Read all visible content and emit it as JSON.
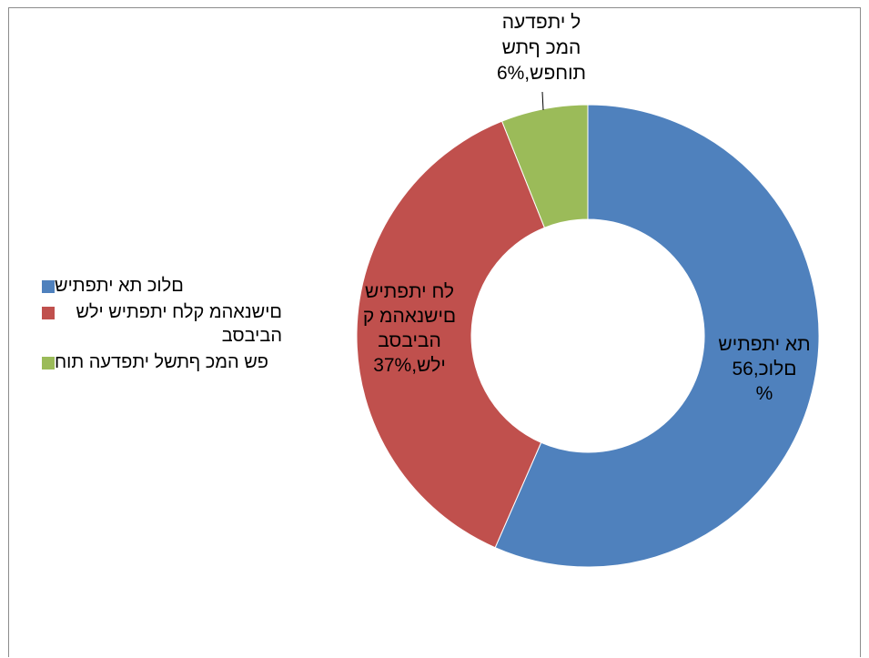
{
  "chart_data": {
    "type": "pie",
    "variant": "doughnut",
    "legend_position": "left",
    "categories": [
      "שיתפתי את כולם",
      "שיתפתי חלק מהאנשים בסביבה שלי",
      "העדפתי לשתף כמה שפחות"
    ],
    "values": [
      56,
      37,
      6
    ],
    "colors": [
      "#4f81bd",
      "#c0504d",
      "#9bbb59"
    ],
    "legend": {
      "items": [
        "םלוכ תא יתפתיש",
        "םישנאהמ קלח יתפתיש ילש הביבסב",
        "פש המכ ףתשל יתפדעה תוח"
      ]
    },
    "data_labels": [
      [
        "תא יתפתיש",
        "םלוכ,56",
        "%"
      ],
      [
        "לח יתפתיש",
        "םישנאהמ ק",
        "הביבסב",
        "ילש,37%"
      ],
      [
        "ל יתפדעה",
        "המכ ףתש",
        "תוחפש,6%"
      ]
    ]
  }
}
